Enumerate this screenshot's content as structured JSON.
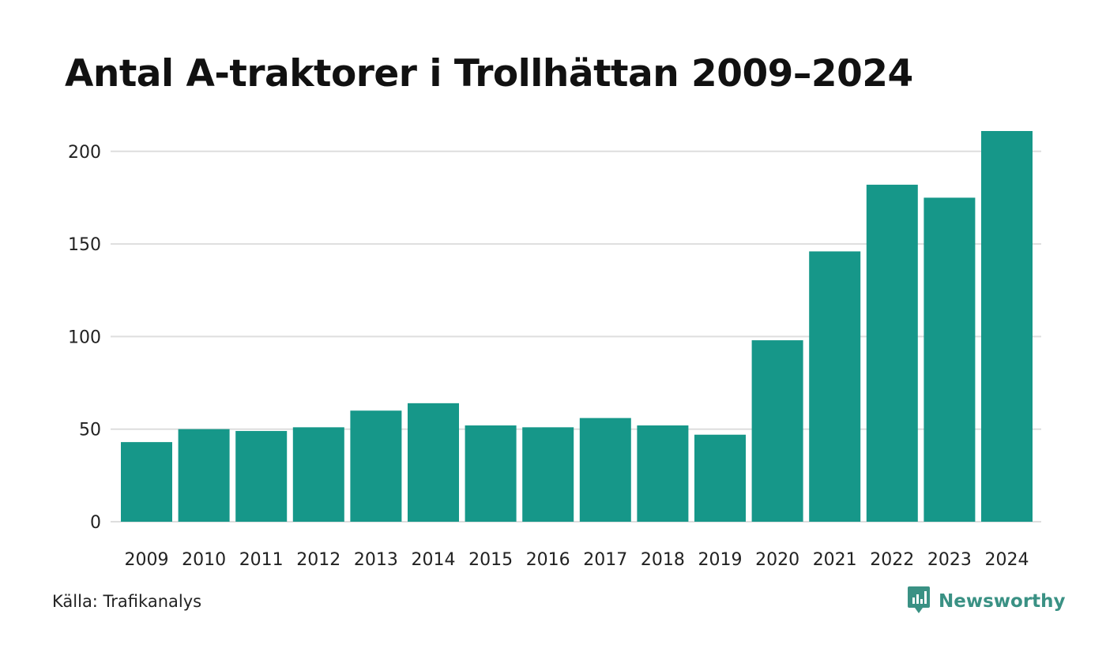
{
  "title": "Antal A-traktorer i Trollhättan 2009–2024",
  "source": "Källa: Trafikanalys",
  "brand": {
    "name": "Newsworthy",
    "icon": "newsworthy-logo-icon",
    "color": "#3a9184"
  },
  "colors": {
    "bar": "#169789",
    "grid": "#dedede"
  },
  "chart_data": {
    "type": "bar",
    "title": "Antal A-traktorer i Trollhättan 2009–2024",
    "xlabel": "",
    "ylabel": "",
    "categories": [
      "2009",
      "2010",
      "2011",
      "2012",
      "2013",
      "2014",
      "2015",
      "2016",
      "2017",
      "2018",
      "2019",
      "2020",
      "2021",
      "2022",
      "2023",
      "2024"
    ],
    "values": [
      43,
      50,
      49,
      51,
      60,
      64,
      52,
      51,
      56,
      52,
      47,
      98,
      146,
      182,
      175,
      211
    ],
    "ylim": [
      0,
      211
    ],
    "yticks": [
      0,
      50,
      100,
      150,
      200
    ],
    "grid": true,
    "legend": "none"
  }
}
